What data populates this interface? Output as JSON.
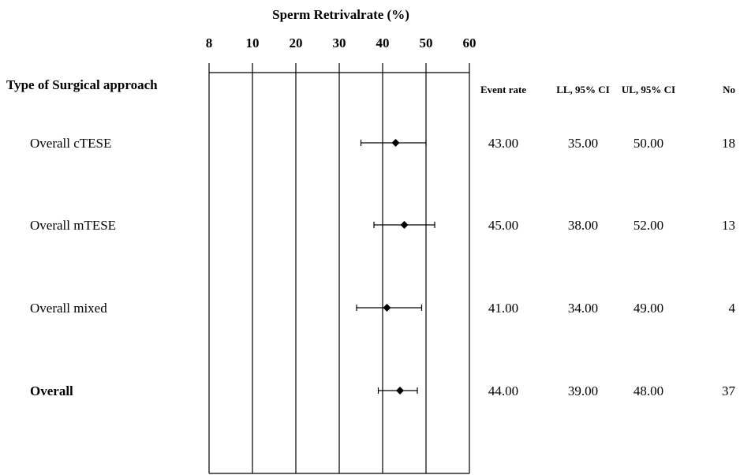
{
  "chart_data": {
    "type": "forest",
    "title": "Sperm Retrivalrate (%)",
    "x_ticks": [
      "8",
      "10",
      "20",
      "30",
      "40",
      "50",
      "60"
    ],
    "row_header": "Type of Surgical approach",
    "column_headers": {
      "event_rate": "Event rate",
      "ll": "LL, 95% CI",
      "ul": "UL, 95% CI",
      "n": "No"
    },
    "rows": [
      {
        "label": "Overall cTESE",
        "event_rate": "43.00",
        "ll": "35.00",
        "ul": "50.00",
        "n": "18",
        "point": 43,
        "lower": 35,
        "upper": 50,
        "bold": false
      },
      {
        "label": "Overall mTESE",
        "event_rate": "45.00",
        "ll": "38.00",
        "ul": "52.00",
        "n": "13",
        "point": 45,
        "lower": 38,
        "upper": 52,
        "bold": false
      },
      {
        "label": "Overall mixed",
        "event_rate": "41.00",
        "ll": "34.00",
        "ul": "49.00",
        "n": "4",
        "point": 41,
        "lower": 34,
        "upper": 49,
        "bold": false
      },
      {
        "label": "Overall",
        "event_rate": "44.00",
        "ll": "39.00",
        "ul": "48.00",
        "n": "37",
        "point": 44,
        "lower": 39,
        "upper": 48,
        "bold": true
      }
    ],
    "grid": true
  }
}
